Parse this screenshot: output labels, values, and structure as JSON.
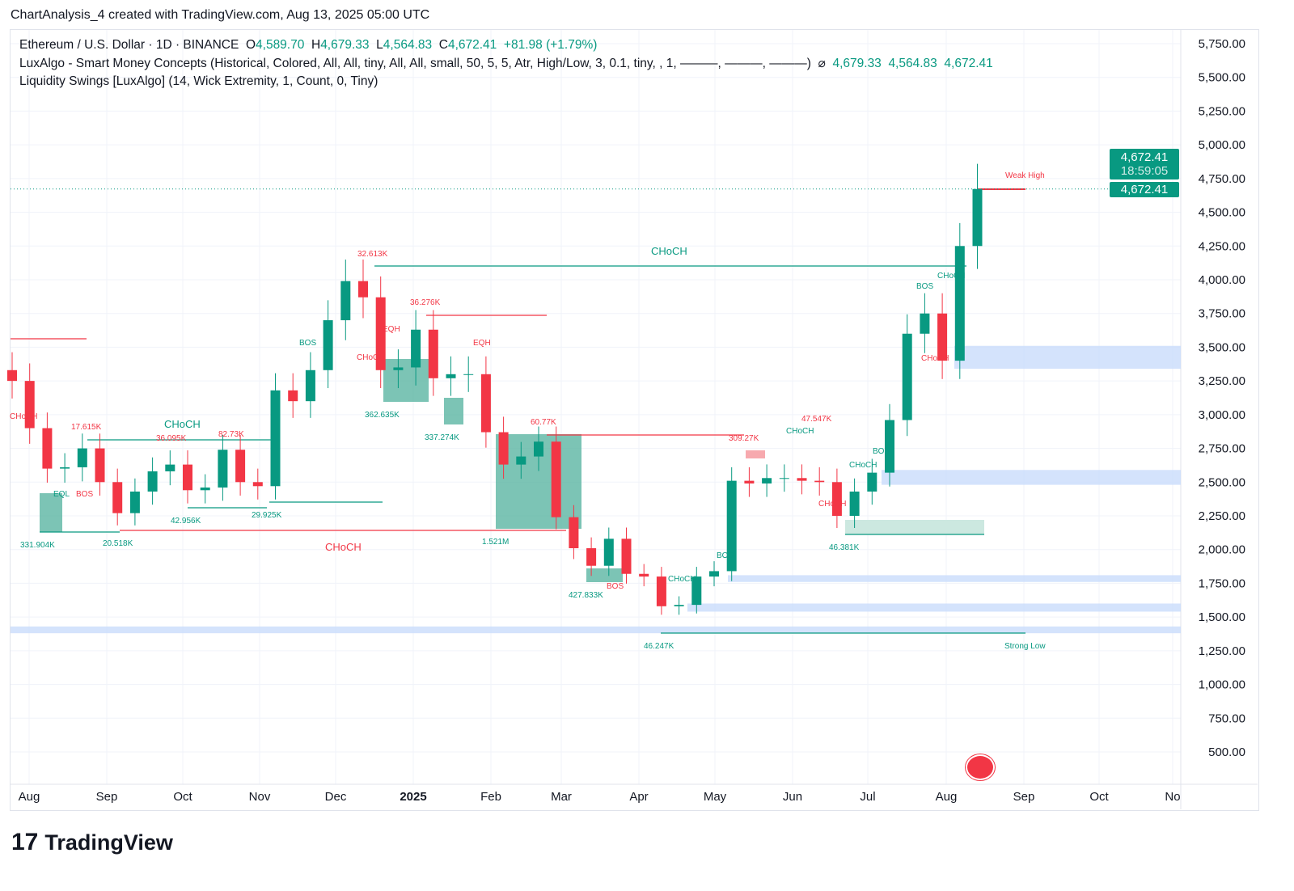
{
  "credit": "ChartAnalysis_4 created with TradingView.com, Aug 13, 2025 05:00 UTC",
  "legend": {
    "symbol": "Ethereum / U.S. Dollar · 1D · BINANCE",
    "o_label": "O",
    "o": "4,589.70",
    "h_label": "H",
    "h": "4,679.33",
    "l_label": "L",
    "l": "4,564.83",
    "c_label": "C",
    "c": "4,672.41",
    "change": "+81.98 (+1.79%)",
    "ind1": "LuxAlgo - Smart Money Concepts (Historical, Colored, All, All, tiny, All, All, small, 50, 5, 5, Atr, High/Low, 3, 0.1, tiny, , 1, ———, ———, ———)",
    "ind1_symbol": "⌀",
    "ind1_vals": [
      "4,679.33",
      "4,564.83",
      "4,672.41"
    ],
    "ind2": "Liquidity Swings [LuxAlgo] (14, Wick Extremity, 1, Count, 0, Tiny)"
  },
  "price_tag": {
    "price": "4,672.41",
    "countdown": "18:59:05"
  },
  "brand": "TradingView",
  "colors": {
    "up": "#089981",
    "down": "#f23645",
    "zone": "#c9dcfb",
    "box": "#5bb5a2"
  },
  "annotations": {
    "choch_top": "CHoCH",
    "choch_bottom": "CHoCH",
    "choch_left": "CHoCH",
    "weak_high": "Weak High",
    "strong_low": "Strong Low",
    "v1": "32.613K",
    "v2": "36.276K",
    "v3": "17.615K",
    "v4": "36.095K",
    "v5": "82.73K",
    "v6": "362.635K",
    "v7": "337.274K",
    "v8": "331.904K",
    "v9": "20.518K",
    "v10": "42.956K",
    "v11": "29.925K",
    "v12": "1.521M",
    "v13": "427.833K",
    "v14": "46.247K",
    "v15": "46.381K",
    "v16": "47.547K",
    "v17": "309.27K",
    "v18": "60.77K",
    "bos": "BOS",
    "eqh": "EQH",
    "eql": "EQL",
    "choch": "CHoCH"
  },
  "chart_data": {
    "type": "candlestick",
    "interval": "1W approximation of 1D",
    "symbol": "ETHUSD",
    "ylim": [
      500,
      5750
    ],
    "yticks": [
      "5,750.00",
      "5,500.00",
      "5,250.00",
      "5,000.00",
      "4,750.00",
      "4,500.00",
      "4,250.00",
      "4,000.00",
      "3,750.00",
      "3,500.00",
      "3,250.00",
      "3,000.00",
      "2,750.00",
      "2,500.00",
      "2,250.00",
      "2,000.00",
      "1,750.00",
      "1,500.00",
      "1,250.00",
      "1,000.00",
      "750.00",
      "500.00"
    ],
    "xticks": [
      "Aug",
      "Sep",
      "Oct",
      "Nov",
      "Dec",
      "2025",
      "Feb",
      "Mar",
      "Apr",
      "May",
      "Jun",
      "Jul",
      "Aug",
      "Sep",
      "Oct",
      "No"
    ],
    "start": "2024-07-22",
    "closes": [
      3250,
      2900,
      2600,
      2610,
      2750,
      2500,
      2270,
      2430,
      2580,
      2630,
      2440,
      2460,
      2740,
      2500,
      2470,
      3180,
      3100,
      3330,
      3700,
      3990,
      3870,
      3330,
      3350,
      3630,
      3270,
      3300,
      3300,
      2870,
      2630,
      2690,
      2800,
      2240,
      2010,
      1880,
      2080,
      1820,
      1800,
      1580,
      1590,
      1800,
      1840,
      2510,
      2490,
      2530,
      2530,
      2510,
      2500,
      2250,
      2430,
      2570,
      2960,
      3600,
      3750,
      3400,
      4250,
      4672.41
    ],
    "last_price": 4672.41,
    "zones": [
      [
        3340,
        3510
      ],
      [
        2480,
        2590
      ],
      [
        1760,
        1810
      ],
      [
        1540,
        1600
      ],
      [
        1380,
        1430
      ]
    ]
  }
}
